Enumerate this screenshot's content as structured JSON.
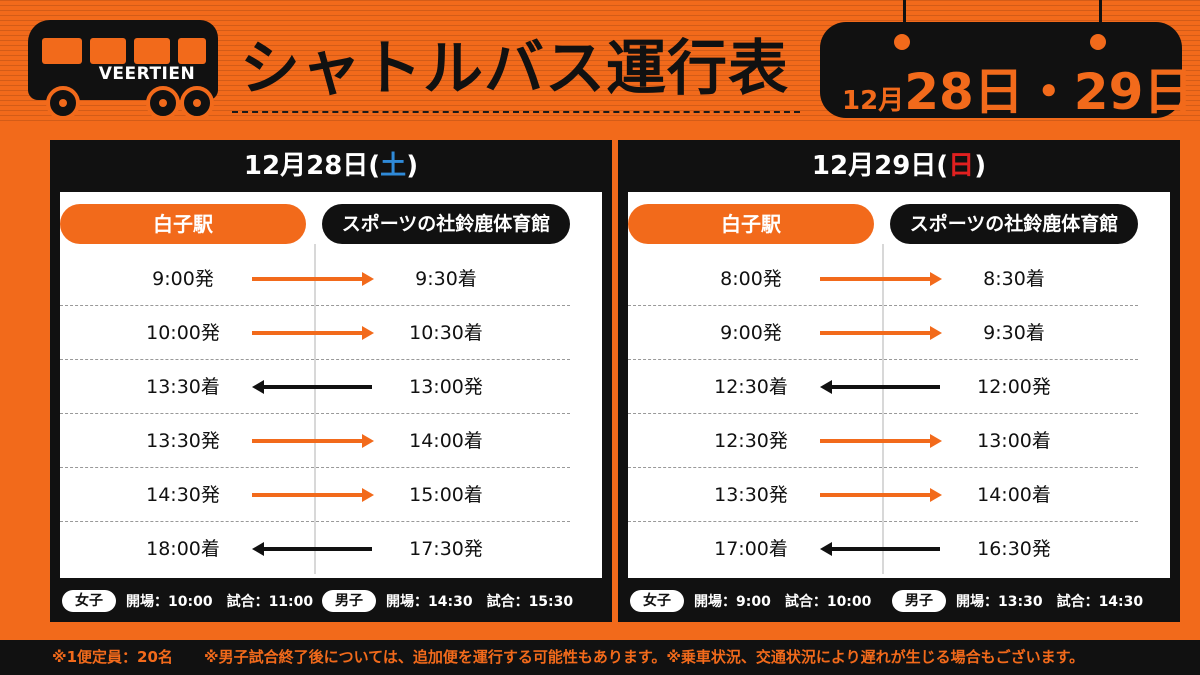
{
  "header": {
    "bus_brand": "VEERTIEN",
    "title": "シャトルバス運行表",
    "date_sign": {
      "month": "12月",
      "day1": "28日",
      "sep": "・",
      "day2": "29日"
    }
  },
  "colors": {
    "accent": "#f26a1b",
    "dark": "#111111",
    "saturday": "#2f8ad8",
    "sunday": "#e02020"
  },
  "panels": [
    {
      "date_prefix": "12月28日(",
      "dow": "土",
      "date_suffix": ")",
      "from_label": "白子駅",
      "to_label": "スポーツの社鈴鹿体育館",
      "rows": [
        {
          "left": "9:00発",
          "right": "9:30着",
          "direction": "right"
        },
        {
          "left": "10:00発",
          "right": "10:30着",
          "direction": "right"
        },
        {
          "left": "13:30着",
          "right": "13:00発",
          "direction": "left"
        },
        {
          "left": "13:30発",
          "right": "14:00着",
          "direction": "right"
        },
        {
          "left": "14:30発",
          "right": "15:00着",
          "direction": "right"
        },
        {
          "left": "18:00着",
          "right": "17:30発",
          "direction": "left"
        }
      ],
      "women_tag": "女子",
      "women_info": "開場：10:00　試合：11:00",
      "men_tag": "男子",
      "men_info": "開場：14:30　試合：15:30"
    },
    {
      "date_prefix": "12月29日(",
      "dow": "日",
      "date_suffix": ")",
      "from_label": "白子駅",
      "to_label": "スポーツの社鈴鹿体育館",
      "rows": [
        {
          "left": "8:00発",
          "right": "8:30着",
          "direction": "right"
        },
        {
          "left": "9:00発",
          "right": "9:30着",
          "direction": "right"
        },
        {
          "left": "12:30着",
          "right": "12:00発",
          "direction": "left"
        },
        {
          "left": "12:30発",
          "right": "13:00着",
          "direction": "right"
        },
        {
          "left": "13:30発",
          "right": "14:00着",
          "direction": "right"
        },
        {
          "left": "17:00着",
          "right": "16:30発",
          "direction": "left"
        }
      ],
      "women_tag": "女子",
      "women_info": "開場：9:00　試合：10:00",
      "men_tag": "男子",
      "men_info": "開場：13:30　試合：14:30"
    }
  ],
  "footer": {
    "note_capacity": "※1便定員：20名",
    "note_extra": "※男子試合終了後については、追加便を運行する可能性もあります。※乗車状況、交通状況により遅れが生じる場合もございます。"
  }
}
